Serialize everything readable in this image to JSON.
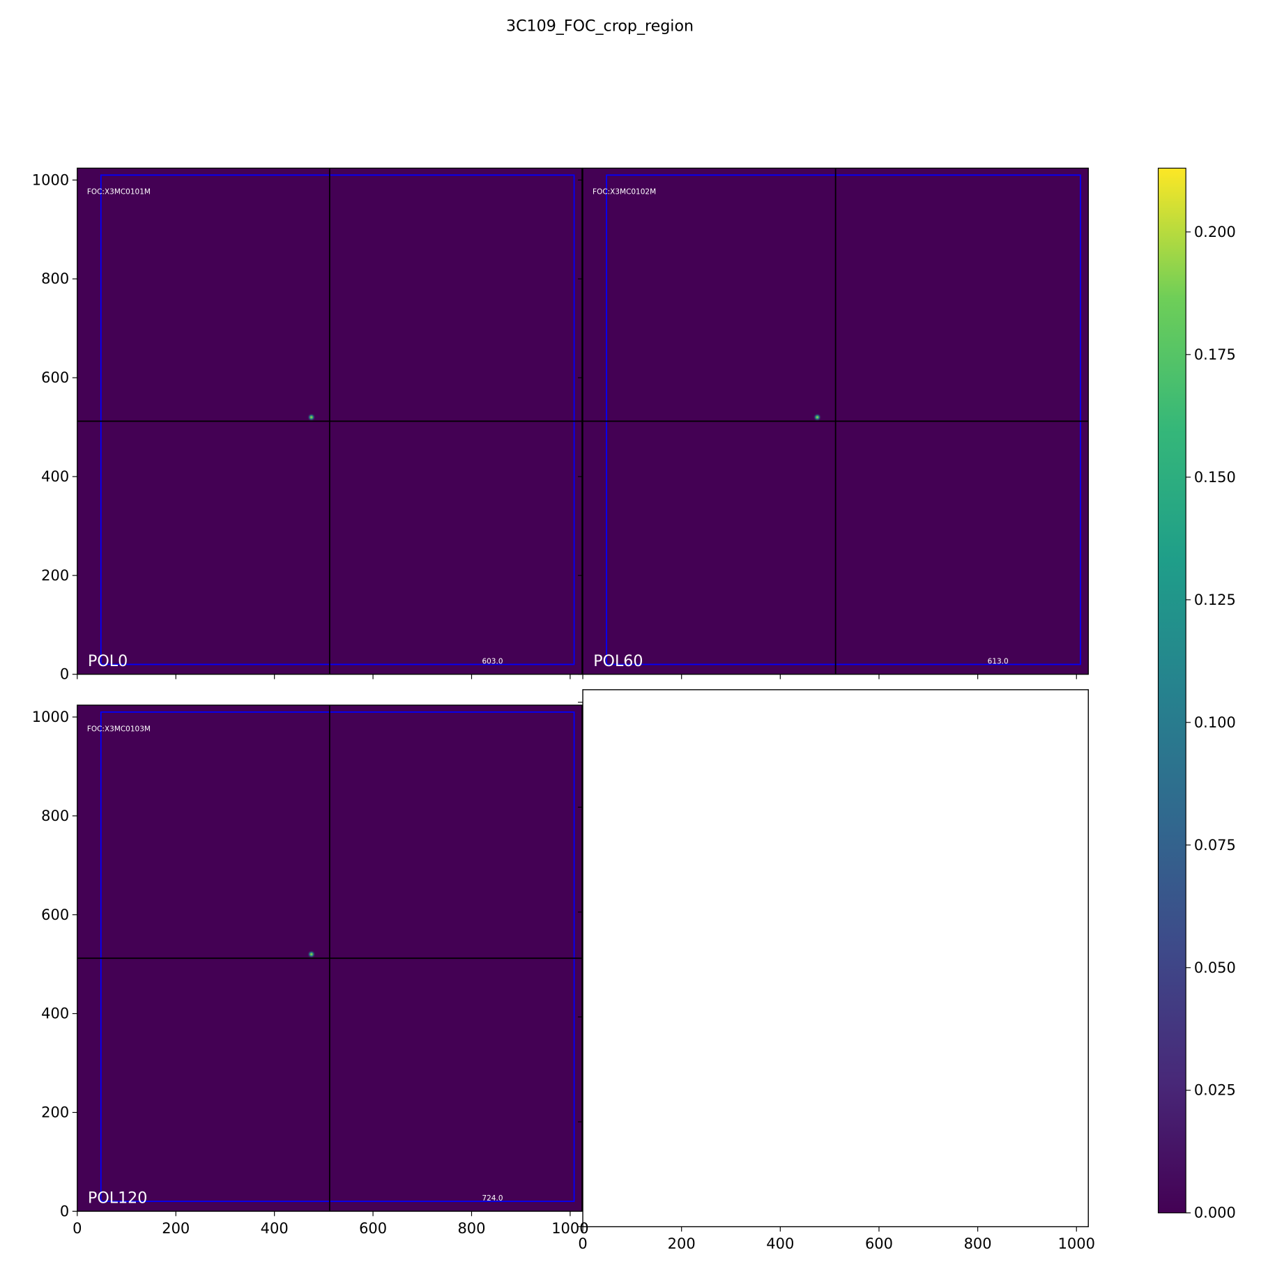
{
  "chart_data": {
    "title": "3C109_FOC_crop_region",
    "type": "heatmap",
    "colormap": "viridis",
    "panels": [
      {
        "label": "POL0",
        "id_text": "FOC:X3MC0101M",
        "value_text": "603.0",
        "show_image": true,
        "x_tick_labels": false,
        "y_tick_labels": true
      },
      {
        "label": "POL60",
        "id_text": "FOC:X3MC0102M",
        "value_text": "613.0",
        "show_image": true,
        "x_tick_labels": false,
        "y_tick_labels": false
      },
      {
        "label": "POL120",
        "id_text": "FOC:X3MC0103M",
        "value_text": "724.0",
        "show_image": true,
        "x_tick_labels": true,
        "y_tick_labels": true
      },
      {
        "label": "",
        "id_text": "",
        "value_text": "",
        "show_image": false,
        "x_tick_labels": true,
        "y_tick_labels": false
      }
    ],
    "xlim": [
      0,
      1024
    ],
    "ylim": [
      0,
      1024
    ],
    "x_ticks": [
      0,
      200,
      400,
      600,
      800,
      1000
    ],
    "y_ticks": [
      0,
      200,
      400,
      600,
      800,
      1000
    ],
    "crosshair": {
      "x": 512,
      "y": 512
    },
    "crop_rectangle": {
      "x0": 48,
      "y0": 20,
      "x1": 1008,
      "y1": 1010,
      "color": "#0000ff"
    },
    "source": {
      "x": 475,
      "y": 520
    },
    "background_value_color": "#440154",
    "colorbar": {
      "vmin": 0.0,
      "vmax": 0.213,
      "ticks": [
        0.0,
        0.025,
        0.05,
        0.075,
        0.1,
        0.125,
        0.15,
        0.175,
        0.2
      ],
      "tick_labels": [
        "0.000",
        "0.025",
        "0.050",
        "0.075",
        "0.100",
        "0.125",
        "0.150",
        "0.175",
        "0.200"
      ]
    }
  }
}
